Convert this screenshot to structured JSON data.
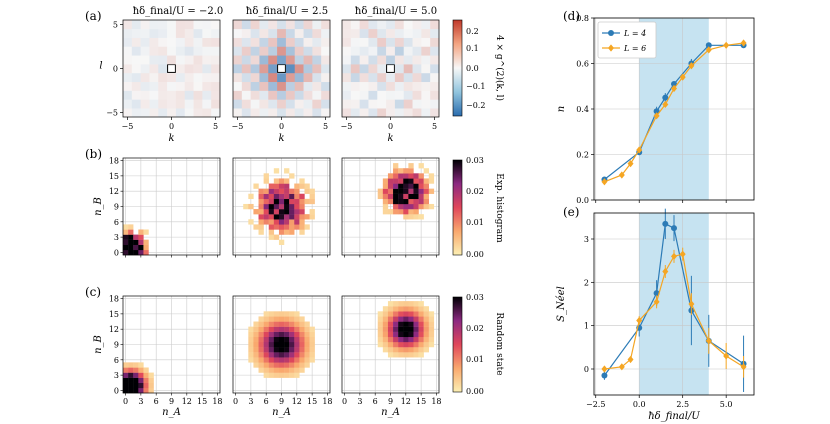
{
  "figure": {
    "panel_labels": [
      "(a)",
      "(b)",
      "(c)",
      "(d)",
      "(e)"
    ],
    "column_titles": [
      "ħδ_final/U = −2.0",
      "ħδ_final/U = 2.5",
      "ħδ_final/U = 5.0"
    ],
    "colorbar_a": {
      "label": "4 × g^(2)(k, l)",
      "ticks": [
        "0.2",
        "0.1",
        "0.0",
        "−0.1",
        "−0.2"
      ],
      "low_color": "#2a6cae",
      "mid_color": "#f7f7f7",
      "high_color": "#c0392b"
    },
    "colorbar_b": {
      "label": "Exp. histogram",
      "ticks": [
        "0.03",
        "0.02",
        "0.01",
        "0.00"
      ]
    },
    "colorbar_c": {
      "label": "Random state",
      "ticks": [
        "0.03",
        "0.02",
        "0.01",
        "0.00"
      ]
    },
    "heat_axes": {
      "x_label_a": "k",
      "y_label_a": "l",
      "x_label_bc": "n_A",
      "y_label_bc": "n_B",
      "ticks_a": [
        "−5",
        "0",
        "5"
      ],
      "ticks_bc": [
        "0",
        "3",
        "6",
        "9",
        "12",
        "15",
        "18"
      ]
    }
  },
  "chart_data": [
    {
      "type": "line",
      "panel": "(d)",
      "xlabel": "ħδ_final/U",
      "ylabel": "n",
      "xlim": [
        -2.6,
        6.6
      ],
      "ylim": [
        0.0,
        0.8
      ],
      "yticks": [
        "0.0",
        "0.2",
        "0.4",
        "0.6",
        "0.8"
      ],
      "shaded_region": [
        0.0,
        4.0
      ],
      "series": [
        {
          "name": "L = 4",
          "color": "#2c7bb6",
          "x": [
            -2.0,
            0.0,
            1.0,
            1.5,
            2.0,
            3.0,
            4.0,
            6.0
          ],
          "y": [
            0.09,
            0.21,
            0.39,
            0.45,
            0.51,
            0.6,
            0.68,
            0.68
          ],
          "err": [
            0.01,
            0.01,
            0.02,
            0.02,
            0.01,
            0.02,
            0.01,
            0.01
          ]
        },
        {
          "name": "L = 6",
          "color": "#f5a623",
          "x": [
            -2.0,
            -1.0,
            -0.5,
            0.0,
            1.0,
            1.5,
            2.0,
            2.5,
            3.0,
            4.0,
            5.0,
            6.0
          ],
          "y": [
            0.08,
            0.11,
            0.16,
            0.22,
            0.37,
            0.42,
            0.49,
            0.54,
            0.59,
            0.66,
            0.68,
            0.69
          ],
          "err": [
            0.01,
            0.01,
            0.01,
            0.01,
            0.01,
            0.01,
            0.01,
            0.01,
            0.01,
            0.01,
            0.01,
            0.01
          ]
        }
      ]
    },
    {
      "type": "line",
      "panel": "(e)",
      "xlabel": "ħδ_final/U",
      "ylabel": "S_Néel",
      "xlim": [
        -2.6,
        6.6
      ],
      "ylim": [
        -0.6,
        3.6
      ],
      "yticks": [
        "0",
        "1",
        "2",
        "3"
      ],
      "xticks": [
        "−2.5",
        "0.0",
        "2.5",
        "5.0"
      ],
      "shaded_region": [
        0.0,
        4.0
      ],
      "series": [
        {
          "name": "L = 4",
          "color": "#2c7bb6",
          "x": [
            -2.0,
            0.0,
            1.0,
            1.5,
            2.0,
            3.0,
            4.0,
            6.0
          ],
          "y": [
            -0.15,
            0.95,
            1.75,
            3.35,
            3.25,
            1.35,
            0.65,
            0.12
          ],
          "err": [
            0.1,
            0.2,
            0.3,
            0.35,
            0.3,
            0.8,
            0.6,
            0.65
          ]
        },
        {
          "name": "L = 6",
          "color": "#f5a623",
          "x": [
            -2.0,
            -1.0,
            -0.5,
            0.0,
            1.0,
            1.5,
            2.0,
            2.5,
            3.0,
            4.0,
            5.0,
            6.0
          ],
          "y": [
            0.0,
            0.05,
            0.22,
            1.12,
            1.55,
            2.25,
            2.6,
            2.65,
            1.5,
            0.65,
            0.3,
            0.05
          ],
          "err": [
            0.05,
            0.05,
            0.05,
            0.1,
            0.15,
            0.15,
            0.15,
            0.15,
            0.25,
            0.3,
            0.3,
            0.25
          ]
        }
      ]
    }
  ]
}
